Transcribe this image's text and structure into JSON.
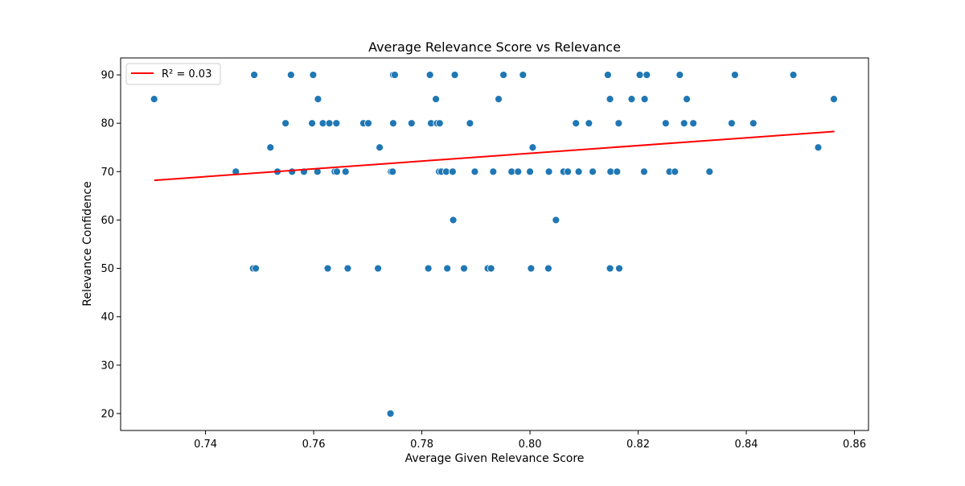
{
  "chart_data": {
    "type": "scatter",
    "title": "Average Relevance Score vs Relevance",
    "xlabel": "Average Given Relevance Score",
    "ylabel": "Relevance Confidence",
    "xlim": [
      0.7243,
      0.8626
    ],
    "ylim": [
      16.5,
      93.5
    ],
    "xticks": [
      0.74,
      0.76,
      0.78,
      0.8,
      0.82,
      0.84,
      0.86
    ],
    "xtick_labels": [
      "0.74",
      "0.76",
      "0.78",
      "0.80",
      "0.82",
      "0.84",
      "0.86"
    ],
    "yticks": [
      20,
      30,
      40,
      50,
      60,
      70,
      80,
      90
    ],
    "ytick_labels": [
      "20",
      "30",
      "40",
      "50",
      "60",
      "70",
      "80",
      "90"
    ],
    "grid": false,
    "legend": {
      "placement": "top-left",
      "entries": [
        {
          "label": "R² = 0.03",
          "color": "#ff0000",
          "kind": "line"
        }
      ]
    },
    "point_color": "#1f77b4",
    "trendline": {
      "color": "#ff0000",
      "x": [
        0.7305,
        0.8563
      ],
      "y": [
        68.2,
        78.3
      ]
    },
    "points": [
      [
        0.7305,
        85
      ],
      [
        0.7456,
        70
      ],
      [
        0.749,
        90
      ],
      [
        0.7488,
        50
      ],
      [
        0.7493,
        50
      ],
      [
        0.752,
        75
      ],
      [
        0.7533,
        70
      ],
      [
        0.7548,
        80
      ],
      [
        0.7558,
        90
      ],
      [
        0.756,
        70
      ],
      [
        0.7582,
        70
      ],
      [
        0.7597,
        80
      ],
      [
        0.7599,
        90
      ],
      [
        0.7607,
        70
      ],
      [
        0.7608,
        85
      ],
      [
        0.7617,
        80
      ],
      [
        0.7626,
        50
      ],
      [
        0.7629,
        80
      ],
      [
        0.7639,
        70
      ],
      [
        0.7642,
        80
      ],
      [
        0.7643,
        70
      ],
      [
        0.7659,
        70
      ],
      [
        0.7663,
        50
      ],
      [
        0.7692,
        80
      ],
      [
        0.7701,
        80
      ],
      [
        0.7719,
        50
      ],
      [
        0.7722,
        75
      ],
      [
        0.7742,
        20
      ],
      [
        0.7743,
        70
      ],
      [
        0.7746,
        70
      ],
      [
        0.7747,
        80
      ],
      [
        0.7747,
        90
      ],
      [
        0.775,
        90
      ],
      [
        0.7781,
        80
      ],
      [
        0.7812,
        50
      ],
      [
        0.7815,
        90
      ],
      [
        0.7817,
        80
      ],
      [
        0.7826,
        85
      ],
      [
        0.7828,
        80
      ],
      [
        0.7832,
        70
      ],
      [
        0.7833,
        80
      ],
      [
        0.7836,
        70
      ],
      [
        0.7845,
        70
      ],
      [
        0.7847,
        50
      ],
      [
        0.7857,
        70
      ],
      [
        0.7858,
        60
      ],
      [
        0.7861,
        90
      ],
      [
        0.7878,
        50
      ],
      [
        0.7889,
        80
      ],
      [
        0.7898,
        70
      ],
      [
        0.7922,
        50
      ],
      [
        0.7928,
        50
      ],
      [
        0.7932,
        70
      ],
      [
        0.7942,
        85
      ],
      [
        0.7951,
        90
      ],
      [
        0.7966,
        70
      ],
      [
        0.7978,
        70
      ],
      [
        0.7987,
        90
      ],
      [
        0.8,
        70
      ],
      [
        0.8002,
        50
      ],
      [
        0.8005,
        75
      ],
      [
        0.8034,
        50
      ],
      [
        0.8035,
        70
      ],
      [
        0.8048,
        60
      ],
      [
        0.8062,
        70
      ],
      [
        0.807,
        70
      ],
      [
        0.8085,
        80
      ],
      [
        0.809,
        70
      ],
      [
        0.8109,
        80
      ],
      [
        0.8116,
        70
      ],
      [
        0.8144,
        90
      ],
      [
        0.8148,
        50
      ],
      [
        0.8148,
        85
      ],
      [
        0.8149,
        70
      ],
      [
        0.8161,
        70
      ],
      [
        0.8164,
        80
      ],
      [
        0.8165,
        50
      ],
      [
        0.8188,
        85
      ],
      [
        0.8203,
        90
      ],
      [
        0.8211,
        70
      ],
      [
        0.8212,
        85
      ],
      [
        0.8216,
        90
      ],
      [
        0.8251,
        80
      ],
      [
        0.8258,
        70
      ],
      [
        0.8268,
        70
      ],
      [
        0.8277,
        90
      ],
      [
        0.8285,
        80
      ],
      [
        0.829,
        85
      ],
      [
        0.8302,
        80
      ],
      [
        0.8332,
        70
      ],
      [
        0.8373,
        80
      ],
      [
        0.8379,
        90
      ],
      [
        0.8413,
        80
      ],
      [
        0.8487,
        90
      ],
      [
        0.8533,
        75
      ],
      [
        0.8562,
        85
      ]
    ]
  }
}
